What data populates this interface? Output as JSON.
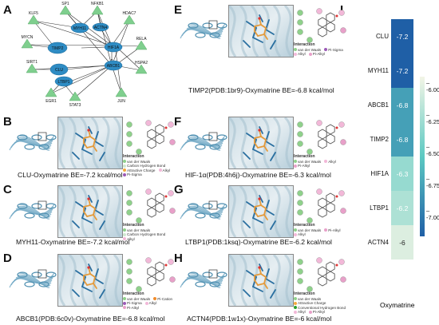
{
  "panels": {
    "A": "A",
    "B": "B",
    "C": "C",
    "D": "D",
    "E": "E",
    "F": "F",
    "G": "G",
    "H": "H",
    "I": "I"
  },
  "network": {
    "nodes": [
      "SP1",
      "NFKB1",
      "KLF5",
      "MYH11",
      "ACTN4",
      "HDAC7",
      "MYCN",
      "TIMP2",
      "HIF1A",
      "RELA",
      "SIRT1",
      "CLU",
      "ABCB1",
      "HSPA2",
      "LTBP1",
      "EGR1",
      "STAT3",
      "JUN"
    ]
  },
  "docking": [
    {
      "id": "B",
      "caption": "CLU-Oxymatrine BE=-7.2 kcal/mol",
      "legend": {
        "title": "Interaction",
        "items": [
          "van der Waals",
          "Carbon Hydrogen Bond",
          "Attractive Charge",
          "Alkyl",
          "Pi-Sigma"
        ]
      }
    },
    {
      "id": "C",
      "caption": "MYH11-Oxymatrine BE=-7.2 kcal/mol",
      "legend": {
        "title": "Interaction",
        "items": [
          "van der Waals",
          "Carbon Hydrogen Bond",
          "Alkyl"
        ]
      }
    },
    {
      "id": "D",
      "caption": "ABCB1(PDB:6c0v)-Oxymatrine BE=-6.8 kcal/mol",
      "legend": {
        "title": "Interaction",
        "items": [
          "van der Waals",
          "Pi-Cation",
          "Pi-Sigma",
          "Alkyl",
          "Pi-Alkyl"
        ]
      }
    },
    {
      "id": "E",
      "caption": "TIMP2(PDB:1br9)-Oxymatrine BE=-6.8 kcal/mol",
      "legend": {
        "title": "Interaction",
        "items": [
          "van der Waals",
          "Pi-Sigma",
          "Alkyl",
          "Pi-Alkyl"
        ]
      }
    },
    {
      "id": "F",
      "caption": "HIF-1α(PDB:4h6j)-Oxymatrine BE=-6.3 kcal/mol",
      "legend": {
        "title": "Interaction",
        "items": [
          "van der Waals",
          "Alkyl",
          "Pi-Alkyl"
        ]
      }
    },
    {
      "id": "G",
      "caption": "LTBP1(PDB:1ksq)-Oxymatrine BE=-6.2 kcal/mol",
      "legend": {
        "title": "Interaction",
        "items": [
          "van der Waals",
          "Pi-Alkyl",
          "Alkyl"
        ]
      }
    },
    {
      "id": "H",
      "caption": "ACTN4(PDB:1w1x)-Oxymatrine BE=-6 kcal/mol",
      "legend": {
        "title": "Interaction",
        "items": [
          "van der Waals",
          "Attractive Charge",
          "Conventional Hydrogen Bond",
          "Alkyl",
          "Pi-Alkyl"
        ]
      }
    }
  ],
  "chart_data": {
    "type": "heatmap",
    "rows": [
      "CLU",
      "MYH11",
      "ABCB1",
      "TIMP2",
      "HIF1A",
      "LTBP1",
      "ACTN4"
    ],
    "columns": [
      "Oxymatrine"
    ],
    "values": [
      -7.2,
      -7.2,
      -6.8,
      -6.8,
      -6.3,
      -6.2,
      -6
    ],
    "value_labels": [
      "-7.2",
      "-7.2",
      "-6.8",
      "-6.8",
      "-6.3",
      "-6.2",
      "-6"
    ],
    "colorbar_ticks": [
      "-6.00",
      "-6.25",
      "-6.50",
      "-6.75",
      "-7.00"
    ],
    "colorbar_tick_values": [
      -6.0,
      -6.25,
      -6.5,
      -6.75,
      -7.0
    ],
    "colorbar_range": [
      -7.2,
      -5.9
    ],
    "colors": {
      "low": "#1f5fa6",
      "mid": "#5cc9c2",
      "high": "#f3f5e6"
    },
    "xlabel": "Oxymatrine"
  }
}
